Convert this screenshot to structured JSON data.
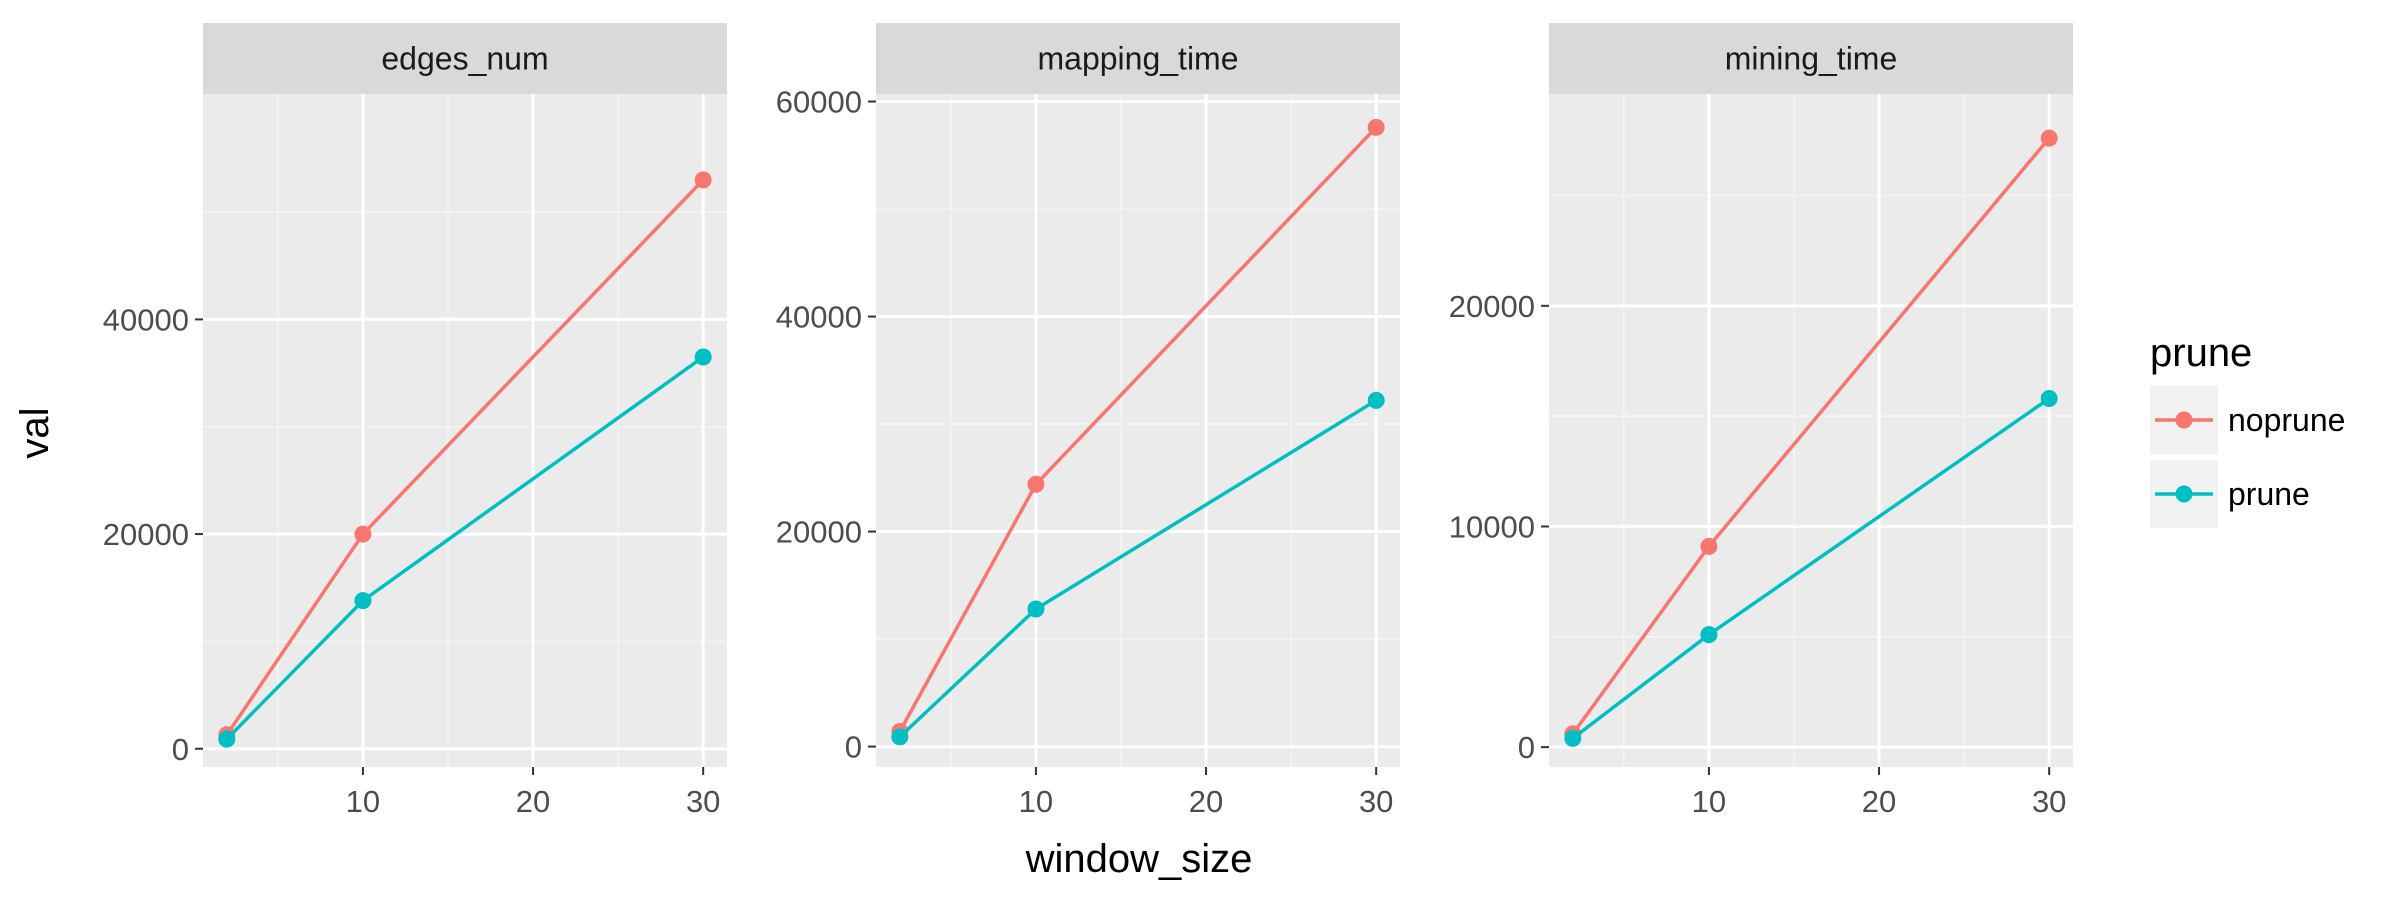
{
  "chart_data": {
    "type": "line",
    "facet_variable": "variable",
    "xlabel": "window_size",
    "ylabel": "val",
    "x_ticks": [
      10,
      20,
      30
    ],
    "x": [
      2,
      10,
      30
    ],
    "xlim": [
      0.6,
      31.4
    ],
    "legend": {
      "title": "prune",
      "position": "right",
      "entries": [
        {
          "label": "noprune",
          "color": "#F8766D"
        },
        {
          "label": "prune",
          "color": "#00BFC4"
        }
      ]
    },
    "grid": true,
    "panels": [
      {
        "title": "edges_num",
        "ylim": [
          -1700,
          61000
        ],
        "y_ticks": [
          0,
          20000,
          40000
        ],
        "y_tick_labels": [
          "0",
          "20000",
          "40000"
        ],
        "series": [
          {
            "name": "noprune",
            "color": "#F8766D",
            "values": [
              1300,
              20000,
              53000
            ]
          },
          {
            "name": "prune",
            "color": "#00BFC4",
            "values": [
              900,
              13800,
              36500
            ]
          }
        ]
      },
      {
        "title": "mapping_time",
        "ylim": [
          -1900,
          60700
        ],
        "y_ticks": [
          0,
          20000,
          40000,
          60000
        ],
        "y_tick_labels": [
          "0",
          "20000",
          "40000",
          "60000"
        ],
        "series": [
          {
            "name": "noprune",
            "color": "#F8766D",
            "values": [
              1400,
              24400,
              57600
            ]
          },
          {
            "name": "prune",
            "color": "#00BFC4",
            "values": [
              900,
              12800,
              32200
            ]
          }
        ]
      },
      {
        "title": "mining_time",
        "ylim": [
          -900,
          29600
        ],
        "y_ticks": [
          0,
          10000,
          20000
        ],
        "y_tick_labels": [
          "0",
          "10000",
          "20000"
        ],
        "series": [
          {
            "name": "noprune",
            "color": "#F8766D",
            "values": [
              600,
              9100,
              27600
            ]
          },
          {
            "name": "prune",
            "color": "#00BFC4",
            "values": [
              400,
              5100,
              15800
            ]
          }
        ]
      }
    ]
  }
}
